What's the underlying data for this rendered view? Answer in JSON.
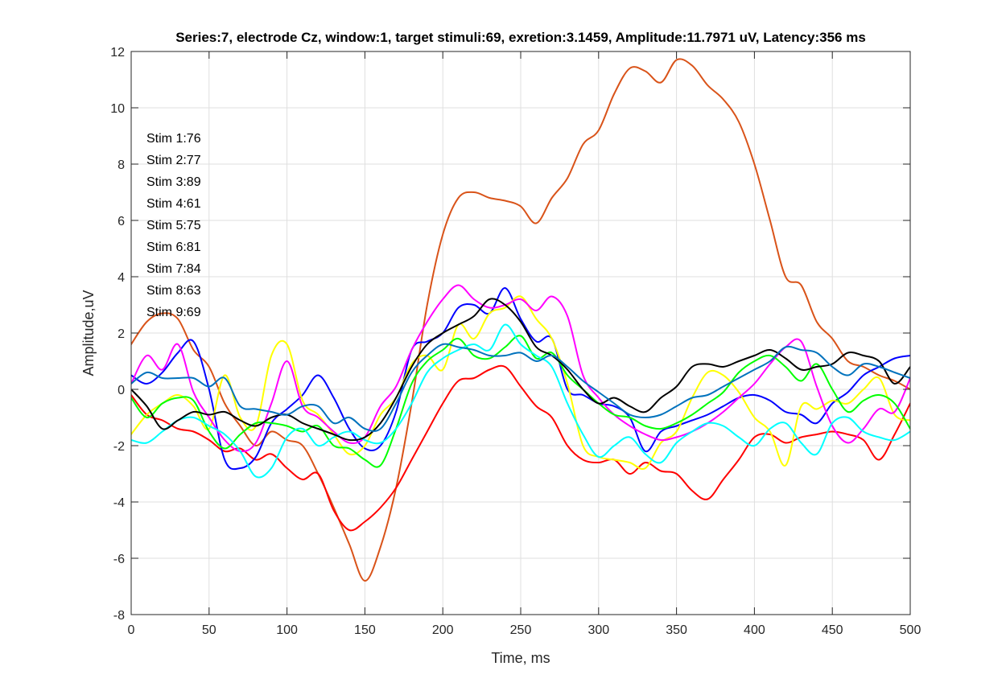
{
  "chart_data": {
    "type": "line",
    "title": "Series:7, electrode Cz, window:1, target stimuli:69, exretion:3.1459, Amplitude:11.7971 uV, Latency:356 ms",
    "xlabel": "Time, ms",
    "ylabel": "Amplitude,uV",
    "xlim": [
      0,
      500
    ],
    "ylim": [
      -8,
      12
    ],
    "xticks": [
      0,
      50,
      100,
      150,
      200,
      250,
      300,
      350,
      400,
      450,
      500
    ],
    "yticks": [
      -8,
      -6,
      -4,
      -2,
      0,
      2,
      4,
      6,
      8,
      10,
      12
    ],
    "grid": true,
    "annotations": [
      "Stim 1:76",
      "Stim 2:77",
      "Stim 3:89",
      "Stim 4:61",
      "Stim 5:75",
      "Stim 6:81",
      "Stim 7:84",
      "Stim 8:63",
      "Stim 9:69"
    ],
    "x": [
      0,
      10,
      20,
      30,
      40,
      50,
      60,
      70,
      80,
      90,
      100,
      110,
      120,
      130,
      140,
      150,
      160,
      170,
      180,
      190,
      200,
      210,
      220,
      230,
      240,
      250,
      260,
      270,
      280,
      290,
      300,
      310,
      320,
      330,
      340,
      350,
      360,
      370,
      380,
      390,
      400,
      410,
      420,
      430,
      440,
      450,
      460,
      470,
      480,
      490,
      500
    ],
    "series": [
      {
        "color": "#D95319",
        "values": [
          1.6,
          2.4,
          2.7,
          2.5,
          1.4,
          0.8,
          -0.5,
          -1.3,
          -2.0,
          -1.5,
          -1.8,
          -2.0,
          -3.0,
          -4.2,
          -5.5,
          -6.8,
          -5.6,
          -3.5,
          -0.5,
          3.0,
          5.5,
          6.8,
          7.0,
          6.8,
          6.7,
          6.5,
          5.9,
          6.8,
          7.5,
          8.7,
          9.2,
          10.5,
          11.4,
          11.3,
          10.9,
          11.7,
          11.5,
          10.8,
          10.3,
          9.5,
          8.0,
          6.0,
          4.0,
          3.7,
          2.4,
          1.8,
          1.0,
          0.8,
          0.5,
          0.3,
          0.0
        ]
      },
      {
        "color": "#FF0000",
        "values": [
          -0.2,
          -0.9,
          -1.1,
          -1.4,
          -1.5,
          -1.8,
          -2.2,
          -2.1,
          -2.5,
          -2.3,
          -2.8,
          -3.2,
          -3.0,
          -4.3,
          -5.0,
          -4.7,
          -4.2,
          -3.5,
          -2.5,
          -1.5,
          -0.5,
          0.3,
          0.4,
          0.7,
          0.8,
          0.1,
          -0.6,
          -1.0,
          -2.0,
          -2.5,
          -2.6,
          -2.5,
          -3.0,
          -2.6,
          -2.9,
          -3.0,
          -3.6,
          -3.9,
          -3.2,
          -2.5,
          -1.7,
          -1.6,
          -1.9,
          -1.7,
          -1.6,
          -1.5,
          -1.6,
          -1.8,
          -2.5,
          -1.6,
          -0.5
        ]
      },
      {
        "color": "#0000FF",
        "values": [
          0.5,
          0.2,
          0.6,
          1.3,
          1.7,
          0.0,
          -2.5,
          -2.8,
          -2.4,
          -1.2,
          -0.7,
          -0.2,
          0.5,
          -0.3,
          -1.4,
          -2.1,
          -2.0,
          -0.8,
          1.4,
          1.7,
          2.0,
          2.9,
          3.0,
          2.7,
          3.6,
          2.5,
          1.7,
          1.8,
          0.0,
          -0.2,
          -0.5,
          -0.6,
          -1.0,
          -2.2,
          -1.5,
          -1.3,
          -1.1,
          -0.9,
          -0.6,
          -0.3,
          -0.2,
          -0.4,
          -0.8,
          -0.9,
          -1.2,
          -0.5,
          -0.1,
          0.5,
          0.8,
          1.1,
          1.2
        ]
      },
      {
        "color": "#FFFF00",
        "values": [
          -1.6,
          -0.9,
          -0.5,
          -0.2,
          -0.6,
          -1.4,
          0.5,
          -1.0,
          -1.3,
          1.2,
          1.6,
          -0.4,
          -0.9,
          -1.6,
          -2.3,
          -2.0,
          -0.9,
          -0.3,
          0.9,
          1.2,
          0.7,
          2.3,
          1.8,
          2.7,
          2.9,
          3.3,
          2.5,
          1.8,
          0.2,
          -2.0,
          -2.4,
          -2.5,
          -2.6,
          -2.8,
          -1.9,
          -1.5,
          -0.3,
          0.6,
          0.5,
          -0.1,
          -1.0,
          -1.5,
          -2.7,
          -0.6,
          -0.7,
          -0.4,
          -0.5,
          0.0,
          0.4,
          -0.9,
          -1.1
        ]
      },
      {
        "color": "#FF00FF",
        "values": [
          0.2,
          1.2,
          0.7,
          1.6,
          -0.1,
          -1.0,
          -1.8,
          -2.2,
          -1.9,
          -0.5,
          1.0,
          -0.6,
          -1.0,
          -1.5,
          -1.9,
          -1.7,
          -0.6,
          0.1,
          1.4,
          2.4,
          3.2,
          3.7,
          3.2,
          2.9,
          3.0,
          3.2,
          2.8,
          3.3,
          2.6,
          0.5,
          -0.3,
          -0.9,
          -1.3,
          -1.6,
          -1.8,
          -1.7,
          -1.5,
          -1.2,
          -0.8,
          -0.3,
          0.2,
          0.9,
          1.5,
          1.7,
          0.1,
          -1.3,
          -1.9,
          -1.4,
          -0.7,
          -0.8,
          0.4
        ]
      },
      {
        "color": "#00FF00",
        "values": [
          -0.3,
          -1.0,
          -0.5,
          -0.3,
          -0.4,
          -1.5,
          -2.1,
          -1.6,
          -1.2,
          -1.2,
          -1.3,
          -1.5,
          -1.3,
          -2.0,
          -2.1,
          -2.5,
          -2.7,
          -1.4,
          0.2,
          1.0,
          1.4,
          1.8,
          1.2,
          1.1,
          1.5,
          1.9,
          1.1,
          1.3,
          0.5,
          0.0,
          -0.5,
          -0.9,
          -1.0,
          -1.3,
          -1.4,
          -1.2,
          -0.9,
          -0.5,
          -0.1,
          0.6,
          1.0,
          1.2,
          0.8,
          0.3,
          0.9,
          0.0,
          -0.8,
          -0.4,
          -0.2,
          -0.5,
          -1.4
        ]
      },
      {
        "color": "#00FFFF",
        "values": [
          -1.8,
          -1.9,
          -1.5,
          -1.1,
          -1.0,
          -1.3,
          -1.6,
          -2.2,
          -3.1,
          -2.8,
          -1.7,
          -1.4,
          -2.0,
          -1.7,
          -1.5,
          -1.8,
          -1.9,
          -1.4,
          -0.5,
          0.6,
          1.1,
          1.4,
          1.6,
          1.4,
          2.3,
          1.6,
          1.2,
          0.8,
          -0.5,
          -1.6,
          -2.4,
          -2.0,
          -1.7,
          -2.3,
          -2.6,
          -1.9,
          -1.5,
          -1.2,
          -1.3,
          -1.7,
          -2.0,
          -1.4,
          -1.2,
          -1.9,
          -2.3,
          -1.2,
          -1.0,
          -1.5,
          -1.7,
          -1.8,
          -1.5
        ]
      },
      {
        "color": "#000000",
        "values": [
          0.0,
          -0.6,
          -1.4,
          -1.1,
          -0.8,
          -0.9,
          -0.8,
          -1.1,
          -1.3,
          -1.0,
          -0.9,
          -1.2,
          -1.4,
          -1.6,
          -1.8,
          -1.7,
          -1.2,
          -0.3,
          0.8,
          1.6,
          2.0,
          2.3,
          2.6,
          3.2,
          3.0,
          2.4,
          1.5,
          1.2,
          0.7,
          0.0,
          -0.5,
          -0.3,
          -0.6,
          -0.8,
          -0.3,
          0.1,
          0.8,
          0.9,
          0.8,
          1.0,
          1.2,
          1.4,
          1.1,
          0.7,
          0.8,
          0.9,
          1.3,
          1.2,
          1.0,
          0.2,
          0.8
        ]
      },
      {
        "color": "#0072BD",
        "values": [
          0.2,
          0.6,
          0.4,
          0.4,
          0.4,
          0.1,
          0.4,
          -0.6,
          -0.7,
          -0.8,
          -0.9,
          -0.6,
          -0.6,
          -1.2,
          -1.0,
          -1.4,
          -1.4,
          -0.5,
          0.6,
          1.2,
          1.6,
          1.5,
          1.4,
          1.2,
          1.2,
          1.3,
          1.0,
          1.2,
          0.8,
          0.3,
          -0.1,
          -0.5,
          -0.9,
          -1.0,
          -0.9,
          -0.6,
          -0.3,
          -0.2,
          0.1,
          0.4,
          0.7,
          1.0,
          1.5,
          1.4,
          1.3,
          0.8,
          0.5,
          0.9,
          0.8,
          0.6,
          0.4
        ]
      }
    ]
  }
}
